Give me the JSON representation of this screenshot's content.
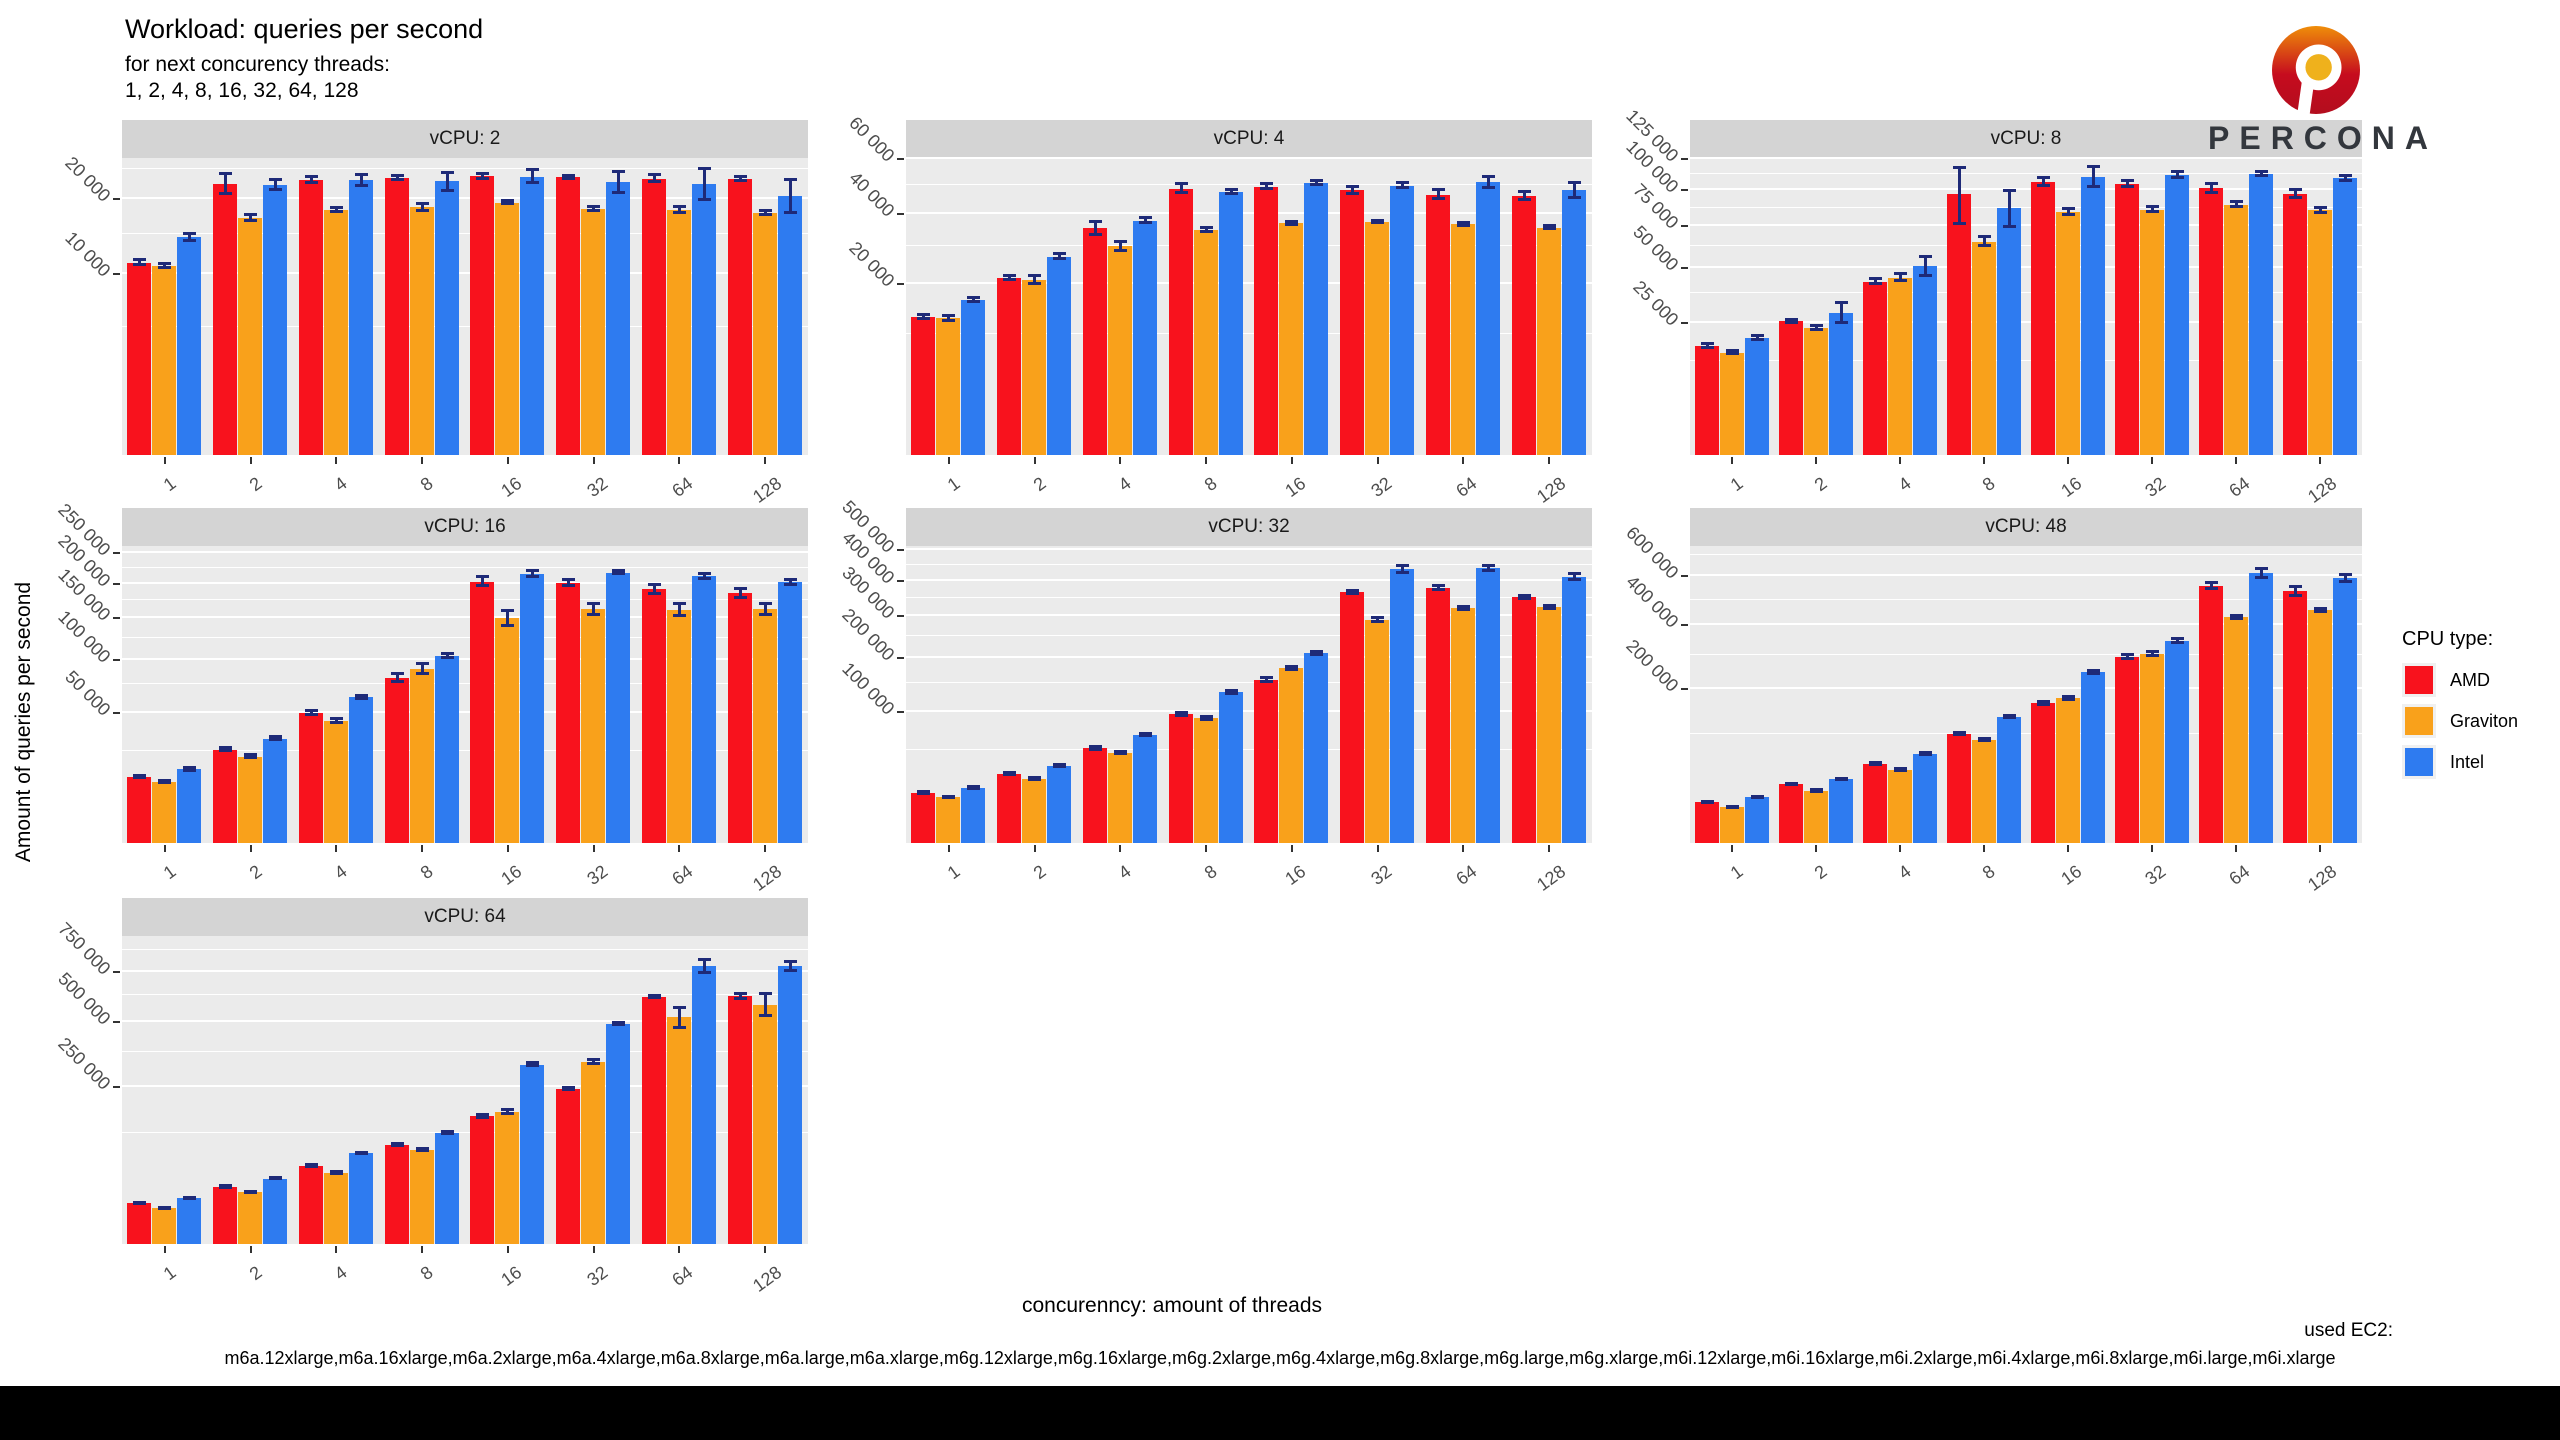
{
  "header": {
    "title": "Workload: queries per second",
    "subtitle_line1": "for next concurency threads:",
    "subtitle_line2": "1, 2, 4, 8, 16, 32, 64, 128"
  },
  "y_axis_title": "Amount of queries per second",
  "x_axis_title": "concurenncy: amount of threads",
  "footer": {
    "used_ec2_label": "used EC2:",
    "instances": "m6a.12xlarge,m6a.16xlarge,m6a.2xlarge,m6a.4xlarge,m6a.8xlarge,m6a.large,m6a.xlarge,m6g.12xlarge,m6g.16xlarge,m6g.2xlarge,m6g.4xlarge,m6g.8xlarge,m6g.large,m6g.xlarge,m6i.12xlarge,m6i.16xlarge,m6i.2xlarge,m6i.4xlarge,m6i.8xlarge,m6i.large,m6i.xlarge"
  },
  "logo": {
    "brand": "PERCONA"
  },
  "colors": {
    "amd": "#F8121D",
    "graviton": "#F9A11B",
    "intel": "#2E7BF0",
    "error_bar": "#1e2a78",
    "strip_bg": "#d4d4d4",
    "panel_bg": "#ebebeb"
  },
  "legend": {
    "title": "CPU type:",
    "items": [
      {
        "label": "AMD",
        "color_key": "amd"
      },
      {
        "label": "Graviton",
        "color_key": "graviton"
      },
      {
        "label": "Intel",
        "color_key": "intel"
      }
    ]
  },
  "chart_data": {
    "type": "bar",
    "scale": "sqrt",
    "grid": true,
    "legend_position": "right",
    "categories": [
      "1",
      "2",
      "4",
      "8",
      "16",
      "32",
      "64",
      "128"
    ],
    "series_names": [
      "AMD",
      "Graviton",
      "Intel"
    ],
    "panels": [
      {
        "title": "vCPU: 2",
        "row": 0,
        "col": 0,
        "ymax": 27000,
        "y_ticks": [
          {
            "v": 10000,
            "label": "10 000"
          },
          {
            "v": 20000,
            "label": "20 000"
          }
        ],
        "series": {
          "amd": [
            11300,
            22500,
            23200,
            23500,
            23800,
            23600,
            23400,
            23300
          ],
          "graviton": [
            10900,
            17200,
            18400,
            18800,
            19500,
            18600,
            18400,
            18000
          ],
          "intel": [
            14500,
            22300,
            23100,
            22900,
            23700,
            22800,
            22500,
            20500
          ]
        },
        "err": {
          "amd": [
            300,
            1600,
            500,
            400,
            400,
            300,
            600,
            300
          ],
          "graviton": [
            250,
            400,
            300,
            500,
            250,
            300,
            450,
            300
          ],
          "intel": [
            450,
            800,
            900,
            1500,
            1100,
            1800,
            2600,
            2600
          ]
        }
      },
      {
        "title": "vCPU: 4",
        "row": 0,
        "col": 1,
        "ymax": 60500,
        "y_ticks": [
          {
            "v": 20000,
            "label": "20 000"
          },
          {
            "v": 40000,
            "label": "40 000"
          },
          {
            "v": 60000,
            "label": "60 000"
          }
        ],
        "series": {
          "amd": [
            13000,
            21500,
            35300,
            48700,
            49400,
            48100,
            46400,
            46000
          ],
          "graviton": [
            12800,
            21000,
            29900,
            34700,
            36800,
            37300,
            36500,
            35500
          ],
          "intel": [
            16500,
            27000,
            37700,
            47400,
            50800,
            49800,
            51000,
            48000
          ]
        },
        "err": {
          "amd": [
            400,
            500,
            2100,
            1600,
            900,
            1300,
            1600,
            1500
          ],
          "graviton": [
            400,
            900,
            1300,
            700,
            500,
            400,
            500,
            500
          ],
          "intel": [
            500,
            700,
            900,
            800,
            700,
            900,
            2200,
            2600
          ]
        }
      },
      {
        "title": "vCPU: 8",
        "row": 0,
        "col": 2,
        "ymax": 126000,
        "y_ticks": [
          {
            "v": 25000,
            "label": "25 000"
          },
          {
            "v": 50000,
            "label": "50 000"
          },
          {
            "v": 75000,
            "label": "75 000"
          },
          {
            "v": 100000,
            "label": "100 000"
          },
          {
            "v": 125000,
            "label": "125 000"
          }
        ],
        "series": {
          "amd": [
            17000,
            25500,
            43000,
            97000,
            106500,
            105000,
            101500,
            97500
          ],
          "graviton": [
            15000,
            23000,
            45000,
            65000,
            84500,
            86000,
            89500,
            85500
          ],
          "intel": [
            19500,
            29000,
            51000,
            87000,
            110500,
            112000,
            112500,
            109500
          ]
        },
        "err": {
          "amd": [
            500,
            700,
            1100,
            21000,
            3200,
            2100,
            3100,
            3000
          ],
          "graviton": [
            400,
            600,
            1600,
            2600,
            2100,
            1600,
            1600,
            1600
          ],
          "intel": [
            600,
            4200,
            5200,
            12500,
            8200,
            2100,
            1600,
            2100
          ]
        }
      },
      {
        "title": "vCPU: 16",
        "row": 1,
        "col": 0,
        "ymax": 262000,
        "y_ticks": [
          {
            "v": 50000,
            "label": "50 000"
          },
          {
            "v": 100000,
            "label": "100 000"
          },
          {
            "v": 150000,
            "label": "150 000"
          },
          {
            "v": 200000,
            "label": "200 000"
          },
          {
            "v": 250000,
            "label": "250 000"
          }
        ],
        "series": {
          "amd": [
            12900,
            25900,
            50000,
            81000,
            203000,
            201000,
            191000,
            185000
          ],
          "graviton": [
            11000,
            22200,
            44100,
            90000,
            150000,
            162000,
            161000,
            162000
          ],
          "intel": [
            16100,
            32200,
            62900,
            103600,
            215000,
            217000,
            211000,
            202000
          ]
        },
        "err": {
          "amd": [
            400,
            900,
            1600,
            4200,
            6500,
            5200,
            6200,
            6200
          ],
          "graviton": [
            350,
            700,
            1300,
            5200,
            10500,
            7200,
            8200,
            7200
          ],
          "intel": [
            500,
            900,
            1600,
            2100,
            5200,
            2600,
            4200,
            4200
          ]
        }
      },
      {
        "title": "vCPU: 32",
        "row": 1,
        "col": 1,
        "ymax": 515000,
        "y_ticks": [
          {
            "v": 100000,
            "label": "100 000"
          },
          {
            "v": 200000,
            "label": "200 000"
          },
          {
            "v": 300000,
            "label": "300 000"
          },
          {
            "v": 400000,
            "label": "400 000"
          },
          {
            "v": 500000,
            "label": "500 000"
          }
        ],
        "series": {
          "amd": [
            14600,
            27700,
            52600,
            97000,
            155000,
            367000,
            379000,
            352000
          ],
          "graviton": [
            12300,
            23900,
            47200,
            91000,
            178000,
            290000,
            322000,
            324000
          ],
          "intel": [
            17600,
            34500,
            68000,
            133000,
            210000,
            437000,
            440000,
            412000
          ]
        },
        "err": {
          "amd": [
            350,
            600,
            1600,
            2100,
            3100,
            4200,
            5200,
            5200
          ],
          "graviton": [
            300,
            500,
            1100,
            2100,
            3100,
            5200,
            4200,
            4200
          ],
          "intel": [
            400,
            700,
            1300,
            2600,
            3100,
            10500,
            7500,
            9500
          ]
        }
      },
      {
        "title": "vCPU: 48",
        "row": 1,
        "col": 2,
        "ymax": 745000,
        "y_ticks": [
          {
            "v": 200000,
            "label": "200 000"
          },
          {
            "v": 400000,
            "label": "400 000"
          },
          {
            "v": 600000,
            "label": "600 000"
          }
        ],
        "series": {
          "amd": [
            14200,
            29300,
            52600,
            100000,
            165000,
            292000,
            557000,
            535000
          ],
          "graviton": [
            10900,
            22800,
            44900,
            89400,
            177000,
            301000,
            430000,
            457000
          ],
          "intel": [
            17800,
            34500,
            66800,
            133800,
            246000,
            344000,
            614000,
            592000
          ]
        },
        "err": {
          "amd": [
            350,
            500,
            1100,
            2100,
            3100,
            5200,
            13000,
            19000
          ],
          "graviton": [
            300,
            500,
            1100,
            2100,
            4200,
            6200,
            6500,
            5500
          ],
          "intel": [
            400,
            600,
            1300,
            2600,
            4200,
            6200,
            19000,
            16000
          ]
        }
      },
      {
        "title": "vCPU: 64",
        "row": 2,
        "col": 0,
        "ymax": 960000,
        "y_ticks": [
          {
            "v": 250000,
            "label": "250 000"
          },
          {
            "v": 500000,
            "label": "500 000"
          },
          {
            "v": 750000,
            "label": "750 000"
          }
        ],
        "series": {
          "amd": [
            17000,
            33000,
            61000,
            100000,
            165000,
            243000,
            617000,
            620000
          ],
          "graviton": [
            13000,
            27000,
            51000,
            89000,
            176000,
            335000,
            520000,
            580000
          ],
          "intel": [
            21000,
            43000,
            83000,
            124000,
            325000,
            490000,
            780000,
            780000
          ]
        },
        "err": {
          "amd": [
            400,
            800,
            1600,
            2100,
            3100,
            3100,
            6500,
            10500
          ],
          "graviton": [
            400,
            700,
            1300,
            2100,
            5200,
            8200,
            46000,
            52000
          ],
          "intel": [
            500,
            800,
            1600,
            2600,
            5200,
            4200,
            36000,
            26000
          ]
        }
      }
    ]
  }
}
